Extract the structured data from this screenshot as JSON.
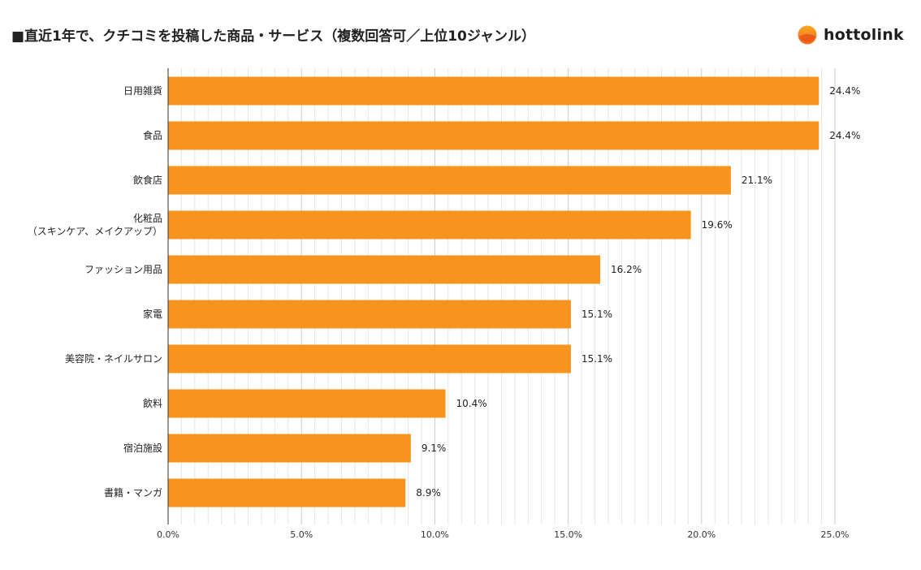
{
  "logo": {
    "text": "hottolink",
    "icon": "hottolink-logo-icon",
    "colors": [
      "#f7941d",
      "#e85d1a"
    ]
  },
  "chart_data": {
    "type": "bar",
    "orientation": "horizontal",
    "title": "■直近1年で、クチコミを投稿した商品・サービス（複数回答可／上位10ジャンル）",
    "categories": [
      [
        "日用雑貨"
      ],
      [
        "食品"
      ],
      [
        "飲食店"
      ],
      [
        "化粧品",
        "（スキンケア、メイクアップ）"
      ],
      [
        "ファッション用品"
      ],
      [
        "家電"
      ],
      [
        "美容院・ネイルサロン"
      ],
      [
        "飲料"
      ],
      [
        "宿泊施設"
      ],
      [
        "書籍・マンガ"
      ]
    ],
    "values": [
      24.4,
      24.4,
      21.1,
      19.6,
      16.2,
      15.1,
      15.1,
      10.4,
      9.1,
      8.9
    ],
    "value_labels": [
      "24.4%",
      "24.4%",
      "21.1%",
      "19.6%",
      "16.2%",
      "15.1%",
      "15.1%",
      "10.4%",
      "9.1%",
      "8.9%"
    ],
    "xlim": [
      0,
      25
    ],
    "x_ticks": [
      0,
      5,
      10,
      15,
      20,
      25
    ],
    "x_tick_labels": [
      "0.0%",
      "5.0%",
      "10.0%",
      "15.0%",
      "20.0%",
      "25.0%"
    ],
    "minor_grid_step": 0.5,
    "bar_color": "#f7941d",
    "grid": true,
    "legend": "none"
  }
}
